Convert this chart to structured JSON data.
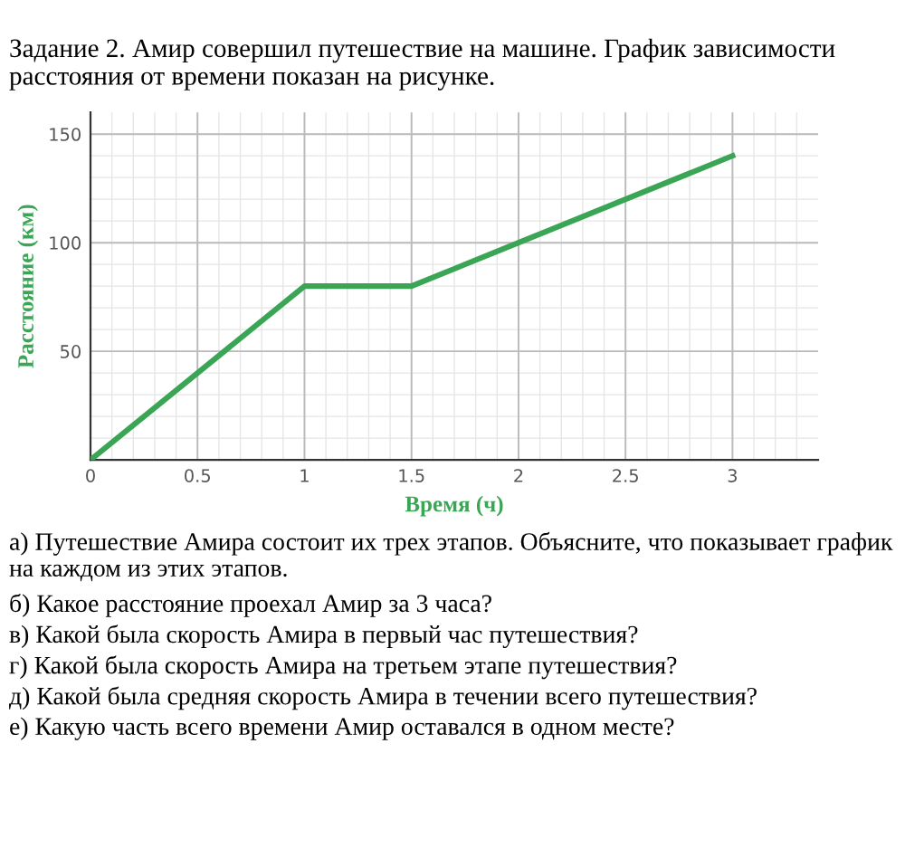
{
  "chart_data": {
    "type": "line",
    "title": "Задание 2. Амир совершил путешествие на машине. График зависимости расстояния от времени показан на рисунке.",
    "xlabel": "Время (ч)",
    "ylabel": "Расстояние (км)",
    "x": [
      0,
      1,
      1.5,
      2,
      3
    ],
    "series": [
      {
        "color": "#3aa655",
        "values": [
          0,
          80,
          80,
          100,
          140
        ]
      }
    ],
    "xlim": [
      0,
      3.4
    ],
    "ylim": [
      0,
      160
    ],
    "xticks": [
      0,
      0.5,
      1,
      1.5,
      2,
      2.5,
      3
    ],
    "yticks": [
      {
        "value": 0,
        "label": null
      },
      50,
      100,
      150
    ],
    "grid": true,
    "marker": "none",
    "line_style": "solid",
    "legend": false,
    "annotations": [
      "а) Путешествие Амира состоит их трех этапов. Объясните, что показывает график на каждом из этих этапов.",
      "б) Какое расстояние проехал Амир за 3 часа?",
      "в) Какой была скорость Амира в первый час путешествия?",
      "г) Какой была скорость Амира на третьем этапе путешествия?",
      "д) Какой была средняя скорость Амира в течении всего путешествия?",
      "е) Какую часть всего времени Амир оставался в одном месте?"
    ]
  }
}
